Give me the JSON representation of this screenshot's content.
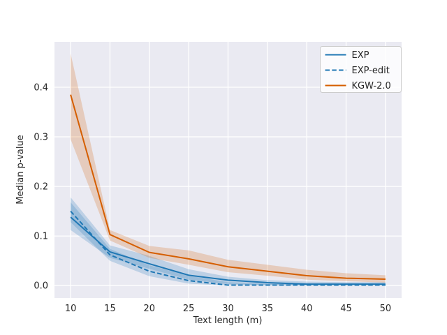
{
  "figure": {
    "background": "#ffffff",
    "plot_background": "#eaeaf2",
    "grid_color": "#ffffff"
  },
  "chart_data": {
    "type": "line",
    "title": "",
    "xlabel": "Text length (m)",
    "ylabel": "Median p-value",
    "x": [
      10,
      15,
      20,
      25,
      30,
      35,
      40,
      45,
      50
    ],
    "xtick_labels": [
      "10",
      "15",
      "20",
      "25",
      "30",
      "35",
      "40",
      "45",
      "50"
    ],
    "yticks": [
      0.0,
      0.1,
      0.2,
      0.3,
      0.4
    ],
    "ytick_labels": [
      "0.0",
      "0.1",
      "0.2",
      "0.3",
      "0.4"
    ],
    "xlim": [
      7.95,
      52.05
    ],
    "ylim": [
      -0.025,
      0.4915
    ],
    "grid": true,
    "legend_position": "upper right",
    "band_opacity": 0.22,
    "series": [
      {
        "name": "EXP",
        "color": "#1f77b4",
        "style": "solid",
        "values": [
          0.138,
          0.068,
          0.044,
          0.021,
          0.011,
          0.006,
          0.003,
          0.003,
          0.003
        ],
        "band_low": [
          0.112,
          0.056,
          0.034,
          0.012,
          0.003,
          0.001,
          0.001,
          0.001,
          0.001
        ],
        "band_high": [
          0.178,
          0.081,
          0.06,
          0.033,
          0.018,
          0.011,
          0.008,
          0.007,
          0.007
        ]
      },
      {
        "name": "EXP-edit",
        "color": "#1f77b4",
        "style": "dashed",
        "values": [
          0.15,
          0.062,
          0.029,
          0.01,
          0.001,
          0.001,
          0.001,
          0.001,
          0.001
        ],
        "band_low": [
          0.128,
          0.05,
          0.019,
          0.004,
          0.0,
          0.0,
          0.0,
          0.0,
          0.0
        ],
        "band_high": [
          0.168,
          0.074,
          0.041,
          0.02,
          0.007,
          0.004,
          0.003,
          0.003,
          0.004
        ]
      },
      {
        "name": "KGW-2.0",
        "color": "#d55e00",
        "style": "solid",
        "values": [
          0.385,
          0.103,
          0.067,
          0.054,
          0.038,
          0.029,
          0.02,
          0.015,
          0.013
        ],
        "band_low": [
          0.295,
          0.091,
          0.056,
          0.042,
          0.027,
          0.02,
          0.012,
          0.009,
          0.006
        ],
        "band_high": [
          0.468,
          0.112,
          0.08,
          0.071,
          0.052,
          0.042,
          0.032,
          0.025,
          0.021
        ]
      }
    ]
  }
}
